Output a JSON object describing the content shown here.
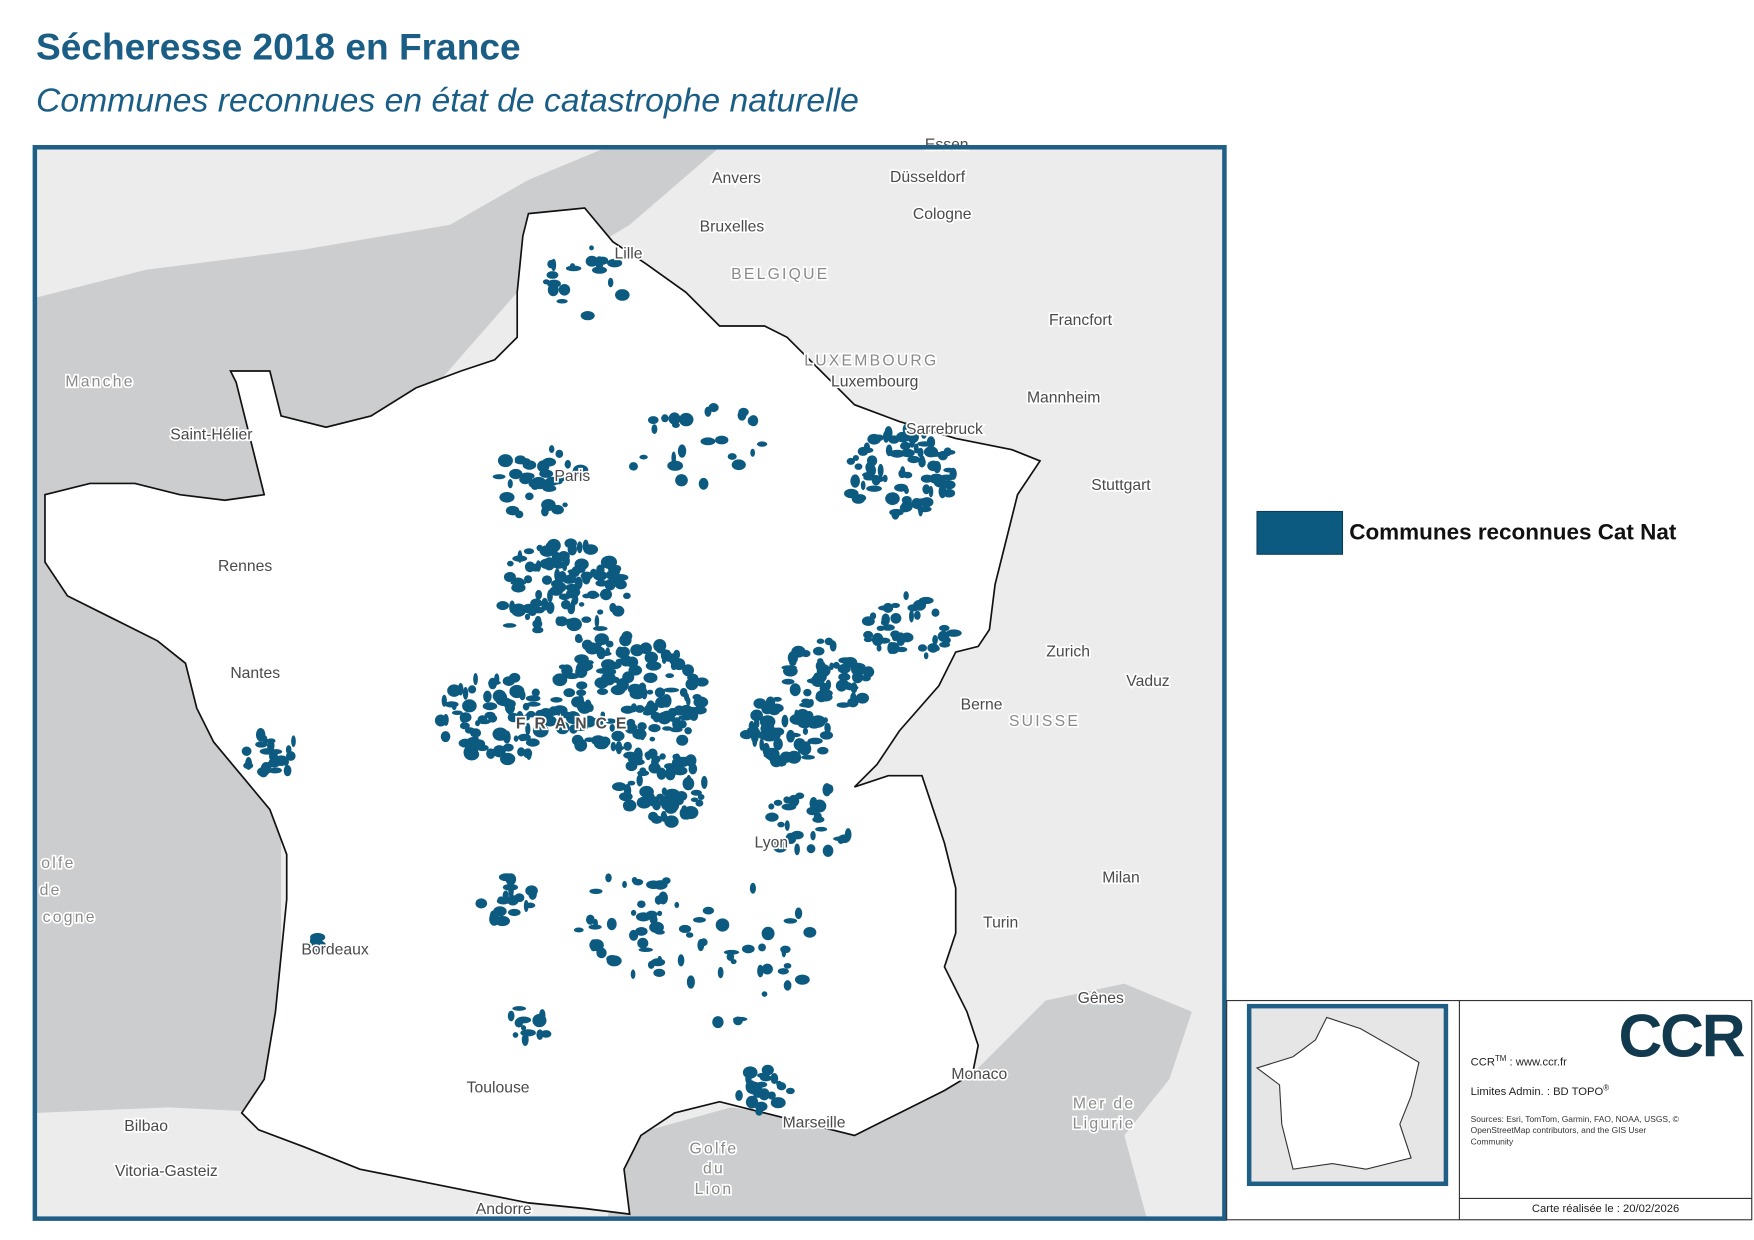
{
  "header": {
    "title": "Sécheresse 2018 en France",
    "subtitle": "Communes reconnues en état de catastrophe naturelle"
  },
  "map": {
    "labels": [
      "Essen",
      "Anvers",
      "Düsseldorf",
      "Bruxelles",
      "Cologne",
      "Lille",
      "BELGIQUE",
      "Francfort",
      "LUXEMBOURG",
      "Luxembourg",
      "Manche",
      "Mannheim",
      "Saint-Hélier",
      "Sarrebruck",
      "Paris",
      "Stuttgart",
      "Rennes",
      "Zurich",
      "Nantes",
      "Vaduz",
      "Berne",
      "SUISSE",
      "FRANCE",
      "Lyon",
      "Milan",
      "olfe",
      "de",
      "cogne",
      "Turin",
      "Bordeaux",
      "Gênes",
      "Monaco",
      "Toulouse",
      "Mer de",
      "Ligurie",
      "Bilbao",
      "Marseille",
      "Golfe",
      "du",
      "Lion",
      "Vitoria-Gasteiz",
      "Andorre"
    ]
  },
  "legend": {
    "label": "Communes reconnues Cat Nat",
    "color": "#0d5a80"
  },
  "credits": {
    "logo": "CCR",
    "website": {
      "name": "CCR",
      "mark": "TM",
      "text": " : www.ccr.fr"
    },
    "limits": {
      "text": "Limites Admin. : BD TOPO",
      "mark": "®"
    },
    "sources": [
      "Sources: Esri, TomTom, Garmin, FAO, NOAA, USGS, ©",
      "OpenStreetMap contributors, and the GIS User",
      "Community"
    ],
    "date": "Carte réalisée le : 20/02/2026"
  }
}
